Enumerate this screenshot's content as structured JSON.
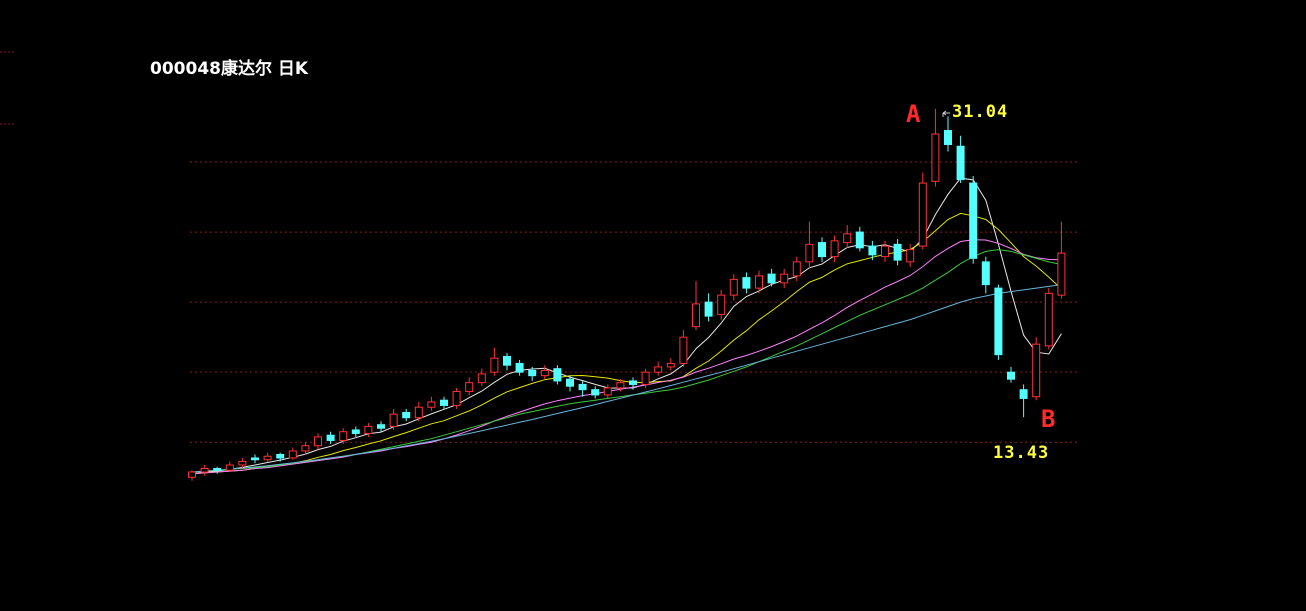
{
  "chart_data": {
    "type": "candlestick",
    "title": "000048康达尔  日K",
    "ylim": [
      9.5,
      32
    ],
    "grid_lines": [
      12,
      16,
      20,
      24,
      28
    ],
    "grid_color": "#8a1e1e",
    "up_color": "#ff3232",
    "down_color": "#54ffff",
    "open": [
      10.0,
      10.3,
      10.5,
      10.4,
      10.7,
      11.1,
      11.0,
      11.3,
      11.1,
      11.5,
      11.8,
      12.4,
      12.1,
      12.7,
      12.5,
      13.0,
      12.9,
      13.7,
      13.4,
      14.0,
      14.4,
      14.1,
      14.9,
      15.4,
      16.0,
      16.9,
      16.5,
      16.1,
      15.8,
      16.2,
      15.6,
      15.3,
      15.0,
      14.7,
      15.1,
      15.5,
      15.3,
      16.0,
      16.3,
      16.5,
      18.6,
      20.0,
      19.3,
      20.4,
      21.4,
      20.8,
      21.6,
      21.1,
      21.5,
      22.3,
      23.4,
      22.6,
      23.4,
      24.0,
      23.2,
      22.6,
      23.3,
      22.3,
      23.2,
      26.9,
      29.8,
      28.9,
      26.8,
      22.3,
      20.8,
      16.0,
      15.0,
      14.6,
      17.5,
      20.4
    ],
    "high": [
      10.4,
      10.7,
      10.6,
      10.9,
      11.1,
      11.3,
      11.4,
      11.4,
      11.7,
      12.0,
      12.5,
      12.6,
      12.8,
      12.9,
      13.1,
      13.2,
      13.9,
      13.9,
      14.3,
      14.6,
      14.6,
      15.1,
      15.7,
      16.2,
      17.4,
      17.1,
      16.7,
      16.3,
      16.4,
      16.4,
      15.8,
      15.5,
      15.2,
      15.3,
      15.6,
      15.7,
      16.2,
      16.6,
      16.8,
      18.4,
      21.2,
      20.5,
      20.7,
      21.6,
      21.7,
      21.8,
      21.9,
      21.9,
      22.6,
      24.6,
      23.7,
      23.8,
      24.4,
      24.3,
      23.5,
      23.5,
      23.6,
      23.3,
      27.4,
      31.04,
      30.6,
      29.5,
      27.2,
      22.6,
      21.0,
      16.3,
      15.3,
      18.0,
      20.8,
      24.6
    ],
    "low": [
      9.8,
      10.1,
      10.2,
      10.3,
      10.5,
      10.8,
      10.9,
      10.9,
      11.0,
      11.3,
      11.6,
      11.9,
      11.9,
      12.3,
      12.3,
      12.6,
      12.7,
      13.2,
      13.2,
      13.8,
      13.9,
      13.9,
      14.7,
      15.2,
      15.8,
      16.1,
      15.8,
      15.5,
      15.6,
      15.3,
      14.9,
      14.6,
      14.5,
      14.5,
      14.9,
      15.0,
      15.1,
      15.8,
      16.1,
      16.3,
      18.4,
      18.9,
      19.0,
      20.1,
      20.5,
      20.5,
      20.9,
      20.8,
      21.2,
      21.9,
      22.3,
      22.3,
      23.1,
      22.9,
      22.4,
      22.3,
      22.1,
      22.0,
      23.0,
      26.6,
      28.6,
      26.8,
      22.2,
      20.5,
      16.7,
      15.4,
      13.43,
      14.4,
      17.3,
      20.2
    ],
    "close": [
      10.3,
      10.5,
      10.4,
      10.7,
      10.9,
      11.0,
      11.2,
      11.1,
      11.5,
      11.8,
      12.3,
      12.1,
      12.6,
      12.5,
      12.9,
      12.8,
      13.6,
      13.4,
      14.0,
      14.3,
      14.1,
      14.9,
      15.4,
      15.9,
      16.8,
      16.4,
      16.0,
      15.8,
      16.1,
      15.5,
      15.2,
      15.0,
      14.7,
      15.1,
      15.4,
      15.3,
      16.0,
      16.3,
      16.5,
      18.0,
      19.9,
      19.2,
      20.4,
      21.3,
      20.8,
      21.5,
      21.1,
      21.6,
      22.3,
      23.3,
      22.6,
      23.5,
      23.9,
      23.1,
      22.7,
      23.2,
      22.4,
      23.0,
      26.8,
      29.6,
      29.0,
      27.0,
      22.5,
      21.0,
      17.0,
      15.6,
      14.5,
      17.6,
      20.5,
      22.8
    ],
    "moving_averages": [
      {
        "color": "#e8e8e8",
        "values": [
          10.2,
          10.3,
          10.35,
          10.45,
          10.56,
          10.7,
          10.84,
          10.98,
          11.14,
          11.32,
          11.58,
          11.76,
          12.06,
          12.26,
          12.48,
          12.58,
          12.88,
          13.04,
          13.34,
          13.62,
          13.88,
          14.14,
          14.54,
          14.92,
          15.42,
          15.88,
          16.1,
          16.18,
          16.22,
          15.96,
          15.72,
          15.52,
          15.3,
          15.1,
          15.08,
          15.1,
          15.3,
          15.62,
          15.9,
          16.42,
          17.34,
          17.98,
          18.8,
          19.76,
          20.32,
          20.64,
          21.02,
          21.26,
          21.46,
          21.96,
          22.18,
          22.66,
          23.12,
          23.28,
          23.16,
          23.28,
          23.06,
          22.88,
          23.62,
          25.0,
          26.16,
          27.08,
          26.98,
          25.82,
          23.3,
          20.62,
          18.12,
          17.14,
          17.04,
          18.2
        ]
      },
      {
        "color": "#e6e600",
        "values": [
          10.2,
          10.25,
          10.3,
          10.35,
          10.4,
          10.5,
          10.6,
          10.7,
          10.8,
          10.94,
          11.14,
          11.3,
          11.52,
          11.7,
          11.9,
          12.08,
          12.32,
          12.55,
          12.8,
          13.05,
          13.23,
          13.51,
          13.79,
          14.13,
          14.52,
          14.88,
          15.12,
          15.36,
          15.57,
          15.69,
          15.8,
          15.81,
          15.74,
          15.66,
          15.52,
          15.41,
          15.41,
          15.46,
          15.5,
          15.75,
          16.22,
          16.64,
          17.21,
          17.83,
          18.37,
          18.99,
          19.5,
          20.03,
          20.61,
          21.14,
          21.41,
          21.84,
          22.19,
          22.37,
          22.56,
          22.73,
          22.86,
          23.0,
          23.45,
          24.08,
          24.72,
          25.07,
          24.93,
          24.72,
          24.15,
          23.39,
          22.6,
          22.06,
          21.43,
          20.75
        ]
      },
      {
        "color": "#ff80ff",
        "values": [
          10.2,
          10.25,
          10.3,
          10.35,
          10.4,
          10.5,
          10.55,
          10.65,
          10.75,
          10.85,
          10.95,
          11.05,
          11.15,
          11.3,
          11.4,
          11.5,
          11.65,
          11.75,
          11.88,
          12.0,
          12.19,
          12.41,
          12.66,
          12.92,
          13.21,
          13.48,
          13.72,
          13.96,
          14.19,
          14.37,
          14.52,
          14.66,
          14.77,
          14.9,
          15.02,
          15.15,
          15.27,
          15.41,
          15.54,
          15.72,
          16.01,
          16.23,
          16.48,
          16.75,
          16.95,
          17.2,
          17.46,
          17.75,
          18.06,
          18.45,
          18.82,
          19.24,
          19.7,
          20.1,
          20.47,
          20.86,
          21.18,
          21.52,
          22.03,
          22.61,
          23.07,
          23.46,
          23.56,
          23.55,
          23.36,
          23.06,
          22.73,
          22.53,
          22.44,
          22.42
        ]
      },
      {
        "color": "#3cc83c",
        "values": [
          10.3,
          10.35,
          10.4,
          10.45,
          10.5,
          10.55,
          10.6,
          10.7,
          10.8,
          10.9,
          11.0,
          11.1,
          11.2,
          11.3,
          11.45,
          11.6,
          11.75,
          11.9,
          12.05,
          12.2,
          12.4,
          12.6,
          12.8,
          13.0,
          13.2,
          13.4,
          13.6,
          13.75,
          13.9,
          14.05,
          14.2,
          14.3,
          14.4,
          14.5,
          14.6,
          14.7,
          14.8,
          14.9,
          15.0,
          15.15,
          15.35,
          15.55,
          15.8,
          16.05,
          16.3,
          16.6,
          16.9,
          17.2,
          17.5,
          17.85,
          18.2,
          18.55,
          18.9,
          19.25,
          19.55,
          19.85,
          20.15,
          20.45,
          20.8,
          21.25,
          21.7,
          22.2,
          22.6,
          22.9,
          23.0,
          22.9,
          22.7,
          22.5,
          22.3,
          22.15
        ]
      },
      {
        "color": "#6ab4dc",
        "values": [
          10.3,
          10.35,
          10.4,
          10.46,
          10.52,
          10.59,
          10.66,
          10.74,
          10.82,
          10.91,
          11.0,
          11.1,
          11.2,
          11.31,
          11.42,
          11.54,
          11.66,
          11.79,
          11.92,
          12.06,
          12.2,
          12.35,
          12.5,
          12.66,
          12.82,
          12.98,
          13.14,
          13.3,
          13.47,
          13.64,
          13.81,
          13.98,
          14.15,
          14.33,
          14.51,
          14.69,
          14.87,
          15.05,
          15.24,
          15.43,
          15.62,
          15.81,
          16.0,
          16.2,
          16.4,
          16.6,
          16.8,
          17.0,
          17.2,
          17.4,
          17.6,
          17.8,
          18.0,
          18.2,
          18.4,
          18.6,
          18.8,
          19.0,
          19.25,
          19.5,
          19.75,
          20.0,
          20.2,
          20.35,
          20.5,
          20.6,
          20.7,
          20.8,
          20.9,
          21.0
        ]
      }
    ],
    "annotations": {
      "peak": "A",
      "trough": "B"
    }
  }
}
